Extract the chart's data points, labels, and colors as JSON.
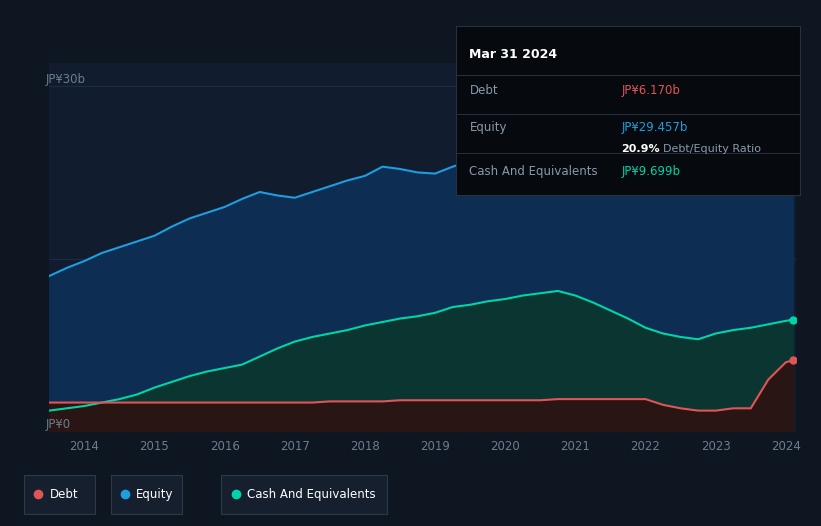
{
  "background_color": "#0e1621",
  "plot_bg_color": "#0e1621",
  "chart_area_color": "#111d2e",
  "tooltip_bg": "#060a0f",
  "ylabel_text": "JP¥30b",
  "ylabel_zero": "JP¥0",
  "xlabel_ticks": [
    "2014",
    "2015",
    "2016",
    "2017",
    "2018",
    "2019",
    "2020",
    "2021",
    "2022",
    "2023",
    "2024"
  ],
  "tooltip_title": "Mar 31 2024",
  "tooltip_debt_label": "Debt",
  "tooltip_debt_value": "JP¥6.170b",
  "tooltip_equity_label": "Equity",
  "tooltip_equity_value": "JP¥29.457b",
  "tooltip_ratio_value": "20.9%",
  "tooltip_ratio_label": "Debt/Equity Ratio",
  "tooltip_cash_label": "Cash And Equivalents",
  "tooltip_cash_value": "JP¥9.699b",
  "equity_color": "#1e9de0",
  "debt_color": "#e05555",
  "cash_color": "#00d4a8",
  "equity_fill": "#0d2d52",
  "cash_fill": "#0a3530",
  "debt_fill": "#2a1515",
  "grid_color": "#1e3050",
  "axis_label_color": "#6b7d8e",
  "legend_bg": "#151f2e",
  "legend_border": "#2a3a4a",
  "ylim_max": 32,
  "years": [
    2013.5,
    2013.75,
    2014.0,
    2014.25,
    2014.5,
    2014.75,
    2015.0,
    2015.25,
    2015.5,
    2015.75,
    2016.0,
    2016.25,
    2016.5,
    2016.75,
    2017.0,
    2017.25,
    2017.5,
    2017.75,
    2018.0,
    2018.25,
    2018.5,
    2018.75,
    2019.0,
    2019.25,
    2019.5,
    2019.75,
    2020.0,
    2020.25,
    2020.5,
    2020.75,
    2021.0,
    2021.25,
    2021.5,
    2021.75,
    2022.0,
    2022.25,
    2022.5,
    2022.75,
    2023.0,
    2023.25,
    2023.5,
    2023.75,
    2024.0,
    2024.1
  ],
  "equity": [
    13.5,
    14.2,
    14.8,
    15.5,
    16.0,
    16.5,
    17.0,
    17.8,
    18.5,
    19.0,
    19.5,
    20.2,
    20.8,
    20.5,
    20.3,
    20.8,
    21.3,
    21.8,
    22.2,
    23.0,
    22.8,
    22.5,
    22.4,
    23.0,
    23.5,
    24.0,
    24.5,
    25.0,
    25.4,
    25.8,
    26.2,
    26.5,
    27.0,
    26.5,
    26.0,
    25.5,
    25.8,
    26.0,
    26.2,
    26.7,
    27.2,
    28.0,
    29.0,
    29.457
  ],
  "cash": [
    1.8,
    2.0,
    2.2,
    2.5,
    2.8,
    3.2,
    3.8,
    4.3,
    4.8,
    5.2,
    5.5,
    5.8,
    6.5,
    7.2,
    7.8,
    8.2,
    8.5,
    8.8,
    9.2,
    9.5,
    9.8,
    10.0,
    10.3,
    10.8,
    11.0,
    11.3,
    11.5,
    11.8,
    12.0,
    12.2,
    11.8,
    11.2,
    10.5,
    9.8,
    9.0,
    8.5,
    8.2,
    8.0,
    8.5,
    8.8,
    9.0,
    9.3,
    9.6,
    9.699
  ],
  "debt": [
    2.5,
    2.5,
    2.5,
    2.5,
    2.5,
    2.5,
    2.5,
    2.5,
    2.5,
    2.5,
    2.5,
    2.5,
    2.5,
    2.5,
    2.5,
    2.5,
    2.6,
    2.6,
    2.6,
    2.6,
    2.7,
    2.7,
    2.7,
    2.7,
    2.7,
    2.7,
    2.7,
    2.7,
    2.7,
    2.8,
    2.8,
    2.8,
    2.8,
    2.8,
    2.8,
    2.3,
    2.0,
    1.8,
    1.8,
    2.0,
    2.0,
    4.5,
    6.0,
    6.17
  ]
}
